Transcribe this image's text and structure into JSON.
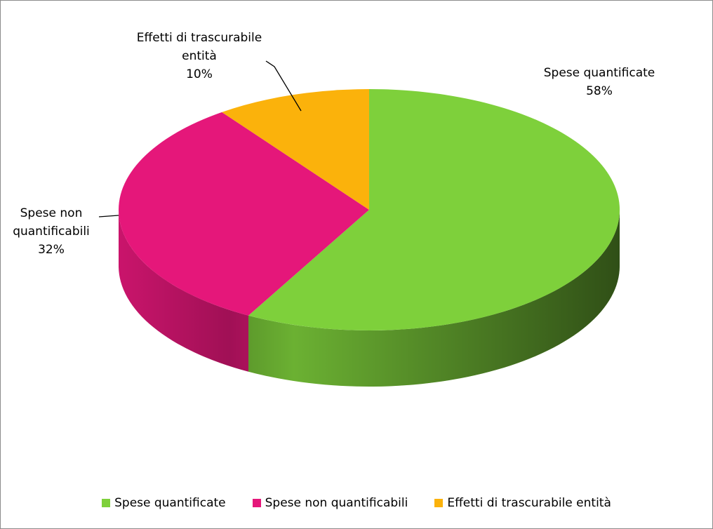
{
  "chart_data": {
    "type": "pie",
    "style": "3d",
    "categories": [
      "Spese quantificate",
      "Spese non quantificabili",
      "Effetti di trascurabile entità"
    ],
    "values": [
      58,
      32,
      10
    ],
    "value_labels": [
      "58%",
      "32%",
      "10%"
    ],
    "colors": [
      "#7ed03b",
      "#e5177a",
      "#fbb20b"
    ],
    "legend": "bottom"
  }
}
